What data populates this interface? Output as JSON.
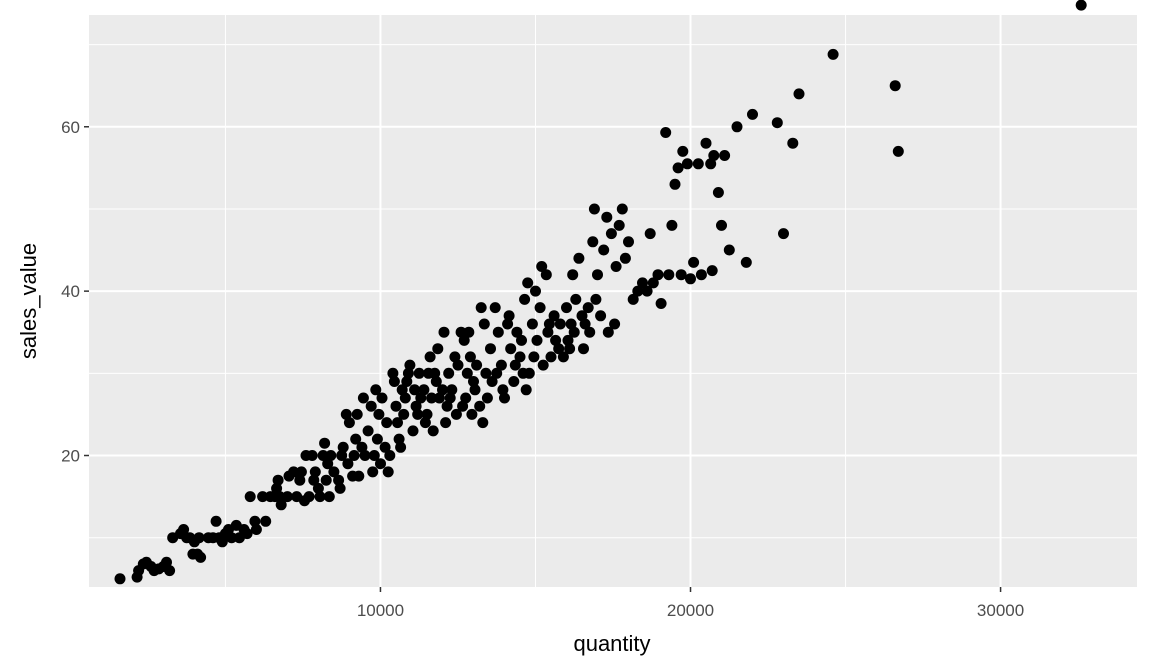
{
  "chart_data": {
    "type": "scatter",
    "title": "",
    "xlabel": "quantity",
    "ylabel": "sales_value",
    "xlim": [
      600,
      34400
    ],
    "ylim": [
      4,
      73.6
    ],
    "x_ticks": [
      10000,
      20000,
      30000
    ],
    "x_tick_labels": [
      "10000",
      "20000",
      "30000"
    ],
    "x_minor_ticks": [
      5000,
      15000,
      25000
    ],
    "y_ticks": [
      20,
      40,
      60
    ],
    "y_tick_labels": [
      "20",
      "40",
      "60"
    ],
    "y_minor_ticks": [
      10,
      30,
      50,
      70
    ],
    "grid": true,
    "panel_color": "#ebebeb",
    "grid_color": "#ffffff",
    "point_color": "#000000",
    "legend": "none",
    "series": [
      {
        "points": [
          [
            1600,
            5
          ],
          [
            2150,
            5.2
          ],
          [
            2200,
            6
          ],
          [
            2350,
            6.8
          ],
          [
            2450,
            7
          ],
          [
            2600,
            6.5
          ],
          [
            2700,
            6
          ],
          [
            2850,
            6.2
          ],
          [
            3000,
            6.5
          ],
          [
            3100,
            7
          ],
          [
            3200,
            6
          ],
          [
            3300,
            10
          ],
          [
            3550,
            10.5
          ],
          [
            3650,
            11
          ],
          [
            3750,
            10
          ],
          [
            3850,
            10
          ],
          [
            3950,
            8
          ],
          [
            4000,
            9.5
          ],
          [
            4100,
            8
          ],
          [
            4150,
            10
          ],
          [
            4200,
            7.6
          ],
          [
            4450,
            10
          ],
          [
            4600,
            10
          ],
          [
            4700,
            12
          ],
          [
            4800,
            10
          ],
          [
            4900,
            9.5
          ],
          [
            5000,
            10.5
          ],
          [
            5100,
            11
          ],
          [
            5200,
            10
          ],
          [
            5350,
            11.5
          ],
          [
            5450,
            10
          ],
          [
            5600,
            11
          ],
          [
            5700,
            10.5
          ],
          [
            5800,
            15
          ],
          [
            5950,
            12
          ],
          [
            6000,
            11
          ],
          [
            6200,
            15
          ],
          [
            6300,
            12
          ],
          [
            6450,
            15
          ],
          [
            6600,
            15
          ],
          [
            6650,
            16
          ],
          [
            6700,
            17
          ],
          [
            6750,
            15
          ],
          [
            6800,
            14
          ],
          [
            7000,
            15
          ],
          [
            7050,
            17.5
          ],
          [
            7200,
            18
          ],
          [
            7300,
            15
          ],
          [
            7400,
            17
          ],
          [
            7450,
            18
          ],
          [
            7550,
            14.5
          ],
          [
            7600,
            20
          ],
          [
            7700,
            15
          ],
          [
            7800,
            20
          ],
          [
            7850,
            17
          ],
          [
            7900,
            18
          ],
          [
            8000,
            16
          ],
          [
            8050,
            15
          ],
          [
            8150,
            20
          ],
          [
            8200,
            21.5
          ],
          [
            8250,
            17
          ],
          [
            8300,
            19
          ],
          [
            8350,
            15
          ],
          [
            8400,
            20
          ],
          [
            8500,
            18
          ],
          [
            8650,
            17
          ],
          [
            8700,
            16
          ],
          [
            8750,
            20
          ],
          [
            8800,
            21
          ],
          [
            8900,
            25
          ],
          [
            8950,
            19
          ],
          [
            9000,
            24
          ],
          [
            9100,
            17.5
          ],
          [
            9150,
            20
          ],
          [
            9200,
            22
          ],
          [
            9250,
            25
          ],
          [
            9300,
            17.5
          ],
          [
            9400,
            21
          ],
          [
            9450,
            27
          ],
          [
            9500,
            20
          ],
          [
            9600,
            23
          ],
          [
            9700,
            26
          ],
          [
            9750,
            18
          ],
          [
            9800,
            20
          ],
          [
            9850,
            28
          ],
          [
            9900,
            22
          ],
          [
            9950,
            25
          ],
          [
            10000,
            19
          ],
          [
            10050,
            27
          ],
          [
            10150,
            21
          ],
          [
            10200,
            24
          ],
          [
            10250,
            18
          ],
          [
            10300,
            20
          ],
          [
            10400,
            30
          ],
          [
            10450,
            29
          ],
          [
            10500,
            26
          ],
          [
            10550,
            24
          ],
          [
            10600,
            22
          ],
          [
            10650,
            21
          ],
          [
            10700,
            28
          ],
          [
            10750,
            25
          ],
          [
            10800,
            27
          ],
          [
            10850,
            29
          ],
          [
            10900,
            30
          ],
          [
            10950,
            31
          ],
          [
            11050,
            23
          ],
          [
            11100,
            28
          ],
          [
            11150,
            26
          ],
          [
            11200,
            25
          ],
          [
            11250,
            30
          ],
          [
            11300,
            27
          ],
          [
            11400,
            28
          ],
          [
            11450,
            24
          ],
          [
            11500,
            25
          ],
          [
            11550,
            30
          ],
          [
            11600,
            32
          ],
          [
            11650,
            27
          ],
          [
            11700,
            23
          ],
          [
            11750,
            30
          ],
          [
            11800,
            29
          ],
          [
            11850,
            33
          ],
          [
            11900,
            27
          ],
          [
            12000,
            28
          ],
          [
            12050,
            35
          ],
          [
            12100,
            24
          ],
          [
            12150,
            26
          ],
          [
            12200,
            30
          ],
          [
            12250,
            27
          ],
          [
            12300,
            28
          ],
          [
            12400,
            32
          ],
          [
            12450,
            25
          ],
          [
            12500,
            31
          ],
          [
            12600,
            35
          ],
          [
            12650,
            26
          ],
          [
            12700,
            34
          ],
          [
            12750,
            27
          ],
          [
            12800,
            30
          ],
          [
            12850,
            35
          ],
          [
            12900,
            32
          ],
          [
            12950,
            25
          ],
          [
            13000,
            29
          ],
          [
            13050,
            28
          ],
          [
            13100,
            31
          ],
          [
            13200,
            26
          ],
          [
            13250,
            38
          ],
          [
            13300,
            24
          ],
          [
            13350,
            36
          ],
          [
            13400,
            30
          ],
          [
            13450,
            27
          ],
          [
            13550,
            33
          ],
          [
            13600,
            29
          ],
          [
            13700,
            38
          ],
          [
            13750,
            30
          ],
          [
            13800,
            35
          ],
          [
            13900,
            31
          ],
          [
            13950,
            28
          ],
          [
            14000,
            27
          ],
          [
            14100,
            36
          ],
          [
            14150,
            37
          ],
          [
            14200,
            33
          ],
          [
            14300,
            29
          ],
          [
            14350,
            31
          ],
          [
            14400,
            35
          ],
          [
            14500,
            32
          ],
          [
            14550,
            34
          ],
          [
            14600,
            30
          ],
          [
            14650,
            39
          ],
          [
            14700,
            28
          ],
          [
            14750,
            41
          ],
          [
            14800,
            30
          ],
          [
            14900,
            36
          ],
          [
            14950,
            32
          ],
          [
            15000,
            40
          ],
          [
            15050,
            34
          ],
          [
            15150,
            38
          ],
          [
            15200,
            43
          ],
          [
            15250,
            31
          ],
          [
            15350,
            42
          ],
          [
            15400,
            35
          ],
          [
            15450,
            36
          ],
          [
            15500,
            32
          ],
          [
            15600,
            37
          ],
          [
            15650,
            34
          ],
          [
            15750,
            33
          ],
          [
            15800,
            36
          ],
          [
            15900,
            32
          ],
          [
            16000,
            38
          ],
          [
            16050,
            34
          ],
          [
            16100,
            33
          ],
          [
            16150,
            36
          ],
          [
            16200,
            42
          ],
          [
            16250,
            35
          ],
          [
            16300,
            39
          ],
          [
            16400,
            44
          ],
          [
            16500,
            37
          ],
          [
            16550,
            33
          ],
          [
            16600,
            36
          ],
          [
            16700,
            38
          ],
          [
            16750,
            35
          ],
          [
            16850,
            46
          ],
          [
            16900,
            50
          ],
          [
            16950,
            39
          ],
          [
            17000,
            42
          ],
          [
            17100,
            37
          ],
          [
            17200,
            45
          ],
          [
            17300,
            49
          ],
          [
            17350,
            35
          ],
          [
            17450,
            47
          ],
          [
            17550,
            36
          ],
          [
            17600,
            43
          ],
          [
            17700,
            48
          ],
          [
            17800,
            50
          ],
          [
            17900,
            44
          ],
          [
            18000,
            46
          ],
          [
            18150,
            39
          ],
          [
            18300,
            40
          ],
          [
            18450,
            41
          ],
          [
            18600,
            40
          ],
          [
            18700,
            47
          ],
          [
            18800,
            41
          ],
          [
            18950,
            42
          ],
          [
            19050,
            38.5
          ],
          [
            19200,
            59.3
          ],
          [
            19300,
            42
          ],
          [
            19400,
            48
          ],
          [
            19500,
            53
          ],
          [
            19600,
            55
          ],
          [
            19700,
            42
          ],
          [
            19750,
            57
          ],
          [
            19900,
            55.5
          ],
          [
            20000,
            41.5
          ],
          [
            20100,
            43.5
          ],
          [
            20250,
            55.5
          ],
          [
            20350,
            42
          ],
          [
            20500,
            58
          ],
          [
            20650,
            55.5
          ],
          [
            20700,
            42.5
          ],
          [
            20750,
            56.5
          ],
          [
            20900,
            52
          ],
          [
            21000,
            48
          ],
          [
            21100,
            56.5
          ],
          [
            21250,
            45
          ],
          [
            21500,
            60
          ],
          [
            21800,
            43.5
          ],
          [
            22000,
            61.5
          ],
          [
            22800,
            60.5
          ],
          [
            23000,
            47
          ],
          [
            23300,
            58
          ],
          [
            23500,
            64
          ],
          [
            24600,
            68.8
          ],
          [
            26600,
            65
          ],
          [
            26700,
            57
          ],
          [
            32600,
            74.8
          ]
        ]
      }
    ]
  }
}
